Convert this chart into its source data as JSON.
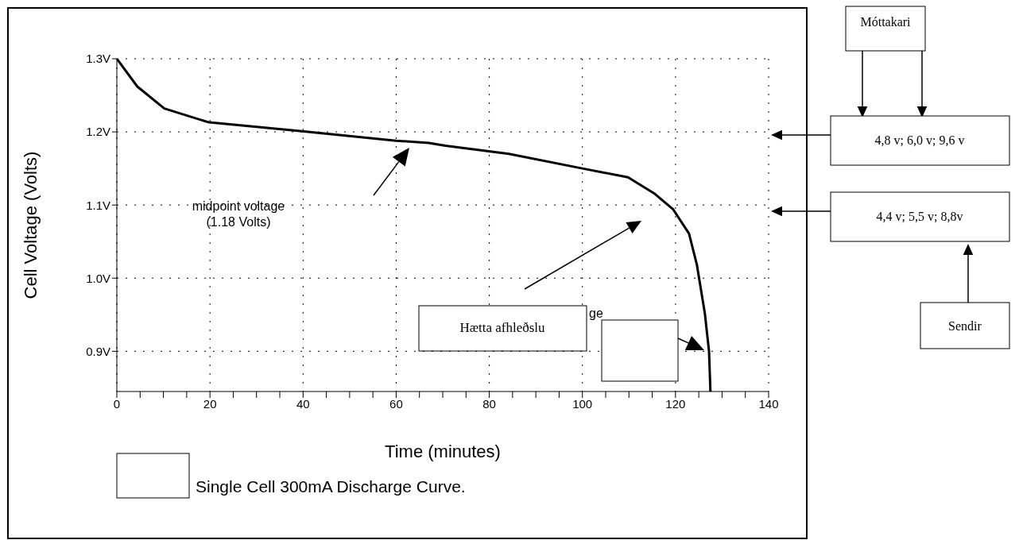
{
  "chart_data": {
    "type": "line",
    "xlabel": "Time (minutes)",
    "ylabel": "Cell Voltage (Volts)",
    "x": [
      0,
      4.4,
      10.2,
      19.8,
      39.8,
      60,
      67,
      70.6,
      84.2,
      100,
      109.8,
      115.4,
      119.5,
      122.9,
      124.6,
      126.3,
      127.2,
      127.5
    ],
    "series": [
      {
        "color": "#000000",
        "values": [
          1.3,
          1.262,
          1.232,
          1.213,
          1.201,
          1.188,
          1.185,
          1.181,
          1.17,
          1.15,
          1.138,
          1.116,
          1.094,
          1.061,
          1.018,
          0.952,
          0.9,
          0.845
        ]
      }
    ],
    "xlim": [
      0,
      140
    ],
    "xticks": [
      0,
      {
        "value": 5,
        "label": null
      },
      {
        "value": 10,
        "label": null
      },
      {
        "value": 15,
        "label": null
      },
      20,
      {
        "value": 25,
        "label": null
      },
      {
        "value": 30,
        "label": null
      },
      {
        "value": 35,
        "label": null
      },
      40,
      {
        "value": 45,
        "label": null
      },
      {
        "value": 50,
        "label": null
      },
      {
        "value": 55,
        "label": null
      },
      60,
      {
        "value": 65,
        "label": null
      },
      {
        "value": 70,
        "label": null
      },
      {
        "value": 75,
        "label": null
      },
      80,
      {
        "value": 85,
        "label": null
      },
      {
        "value": 90,
        "label": null
      },
      {
        "value": 95,
        "label": null
      },
      100,
      {
        "value": 105,
        "label": null
      },
      {
        "value": 110,
        "label": null
      },
      {
        "value": 115,
        "label": null
      },
      120,
      {
        "value": 125,
        "label": null
      },
      {
        "value": 130,
        "label": null
      },
      {
        "value": 135,
        "label": null
      },
      140
    ],
    "ylim": [
      0.845,
      1.3
    ],
    "yticks": [
      {
        "value": 0.9,
        "label": "0.9V"
      },
      {
        "value": 1.0,
        "label": "1.0V"
      },
      {
        "value": 1.1,
        "label": "1.1V"
      },
      {
        "value": 1.2,
        "label": "1.2V"
      },
      {
        "value": 1.3,
        "label": "1.3V"
      }
    ],
    "grid": true,
    "annotations": [
      "midpoint voltage\n(1.18 Volts)",
      "Hætta afhleðslu",
      "ge",
      "Single Cell 300mA Discharge Curve.",
      "Móttakari",
      "4,8 v; 6,0 v; 9,6 v",
      "4,4 v; 5,5 v; 8,8v",
      "Sendir"
    ]
  }
}
